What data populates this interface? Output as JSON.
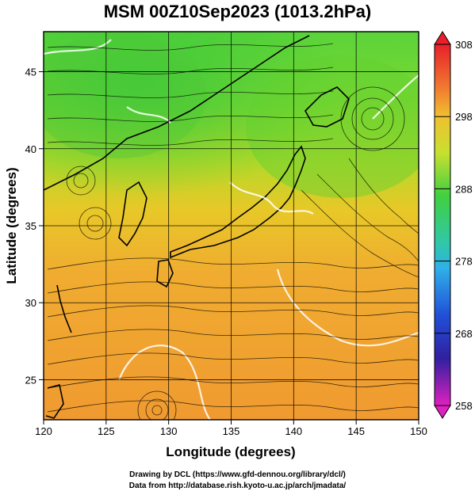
{
  "title": "MSM 00Z10Sep2023 (1013.2hPa)",
  "map": {
    "xlabel": "Longitude (degrees)",
    "ylabel": "Latitude  (degrees)",
    "xticks": [
      120,
      125,
      130,
      135,
      140,
      145,
      150
    ],
    "yticks": [
      25,
      30,
      35,
      40,
      45
    ],
    "xlim": [
      120,
      150
    ],
    "ylim": [
      22.4,
      47.6
    ],
    "field": "temperature (K), streamlines of surface wind",
    "colors": {
      "warm": "#f0a030",
      "mid": "#e8c020",
      "cool": "#40d040",
      "land_outline": "#000000",
      "contour": "#ffffff"
    }
  },
  "colorbar": {
    "labels": [
      "308",
      "298",
      "288",
      "278",
      "268",
      "258"
    ],
    "range": [
      258,
      308
    ]
  },
  "credits": {
    "line1": "Drawing by DCL (https://www.gfd-dennou.org/library/dcl/)",
    "line2": "Data from http://database.rish.kyoto-u.ac.jp/arch/jmadata/"
  }
}
